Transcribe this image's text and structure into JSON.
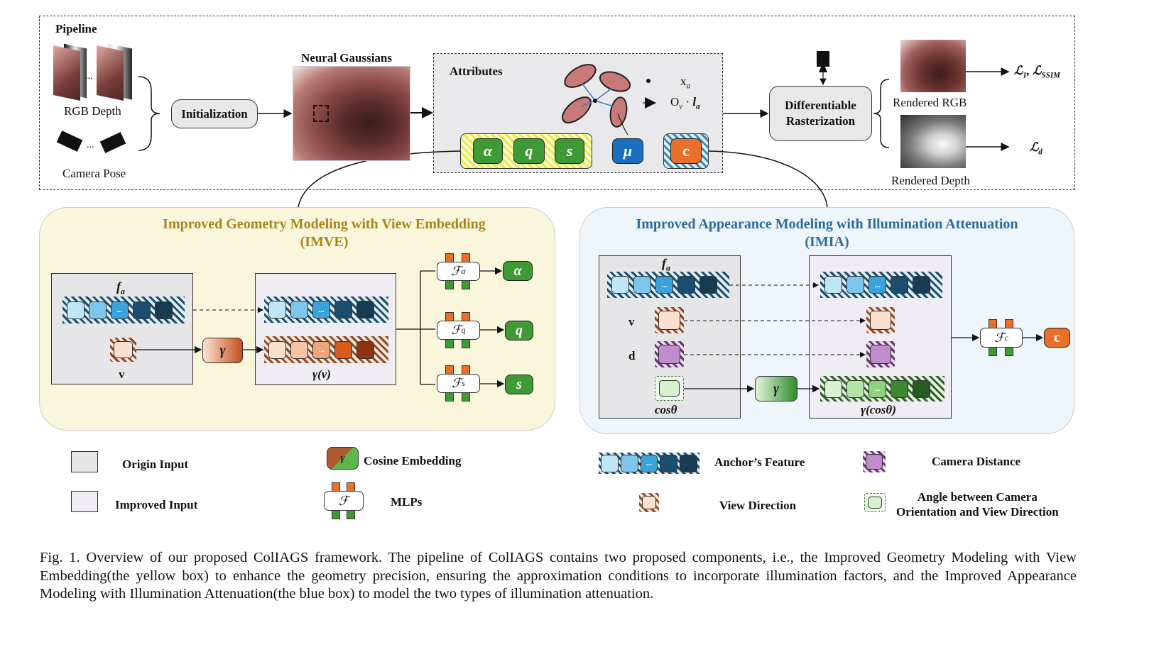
{
  "pipeline": {
    "label": "Pipeline",
    "rgb_depth_label": "RGB Depth",
    "ellipsis": "...",
    "camera_pose_label": "Camera Pose",
    "initialization": "Initialization",
    "neural_gaussians": "Neural Gaussians",
    "attributes": {
      "label": "Attributes",
      "anchor_position": {
        "base": "x",
        "sub": "a"
      },
      "offset": {
        "base": "O",
        "sub": "v",
        "dot": " · ",
        "l": "l",
        "lsub": "a"
      },
      "chips": [
        "α",
        "q",
        "s",
        "μ",
        "c"
      ]
    },
    "rasterization": [
      "Differentiable",
      "Rasterization"
    ],
    "rendered_rgb": "Rendered RGB",
    "rendered_depth": "Rendered Depth",
    "loss_rgb": {
      "l": "ℒ",
      "sub1": "1",
      "sep": ", ",
      "sub2": "SSIM"
    },
    "loss_depth": {
      "l": "ℒ",
      "sub": "d"
    }
  },
  "imve": {
    "title_line1": "Improved Geometry Modeling with View Embedding",
    "title_line2": "(IMVE)",
    "fa": {
      "base": "f",
      "sub": "a"
    },
    "v": "v",
    "gamma": "γ",
    "gamma_v": "γ(v)",
    "ellipsis": "...",
    "mlps": [
      {
        "symbol": "ℱ",
        "sub": "α",
        "out": "α"
      },
      {
        "symbol": "ℱ",
        "sub": "q",
        "out": "q"
      },
      {
        "symbol": "ℱ",
        "sub": "s",
        "out": "s"
      }
    ]
  },
  "imia": {
    "title_line1": "Improved Appearance Modeling with Illumination Attenuation",
    "title_line2": "(IMIA)",
    "fa": {
      "base": "f",
      "sub": "a"
    },
    "v": "v",
    "d": "d",
    "cos": "cosθ",
    "gamma": "γ",
    "gamma_cos": "γ(cosθ)",
    "ellipsis": "...",
    "mlp": {
      "symbol": "ℱ",
      "sub": "c",
      "out": "c"
    }
  },
  "legend": {
    "origin_input": "Origin Input",
    "improved_input": "Improved Input",
    "cosine_embedding": "Cosine Embedding",
    "gamma": "γ",
    "mlps": "MLPs",
    "mlp_symbol": "ℱ",
    "anchor_feature": "Anchor’s Feature",
    "camera_distance": "Camera Distance",
    "view_direction": "View Direction",
    "angle_line1": "Angle between Camera",
    "angle_line2": "Orientation and View Direction"
  },
  "caption": "Fig. 1.  Overview of our proposed ColIAGS framework. The pipeline of ColIAGS contains two proposed components, i.e., the Improved Geometry Modeling with View Embedding(the yellow box) to enhance the geometry precision, ensuring the approximation conditions to incorporate illumination factors, and the Improved Appearance Modeling with Illumination Attenuation(the blue box) to model the two types of illumination attenuation.",
  "colors": {
    "geometry_green": "#3d9a34",
    "mu_blue": "#1a6fc0",
    "color_orange": "#e8702a",
    "imve_title": "#a8851c",
    "imia_title": "#2d6aa0",
    "imve_bg": "#faf6dc",
    "imia_bg": "#eef5fb",
    "feature_cells": [
      "#bfe6f7",
      "#7cc6ec",
      "#3aa3dc",
      "#1b4d6e",
      "#163b52"
    ],
    "view_cells": [
      "#fbe0cf",
      "#f6c2a2",
      "#eea57c",
      "#d9591f",
      "#8e3310"
    ],
    "cos_cells": [
      "#d8f2d0",
      "#b4e5a6",
      "#8fd17c",
      "#3b8a30",
      "#275a21"
    ]
  }
}
